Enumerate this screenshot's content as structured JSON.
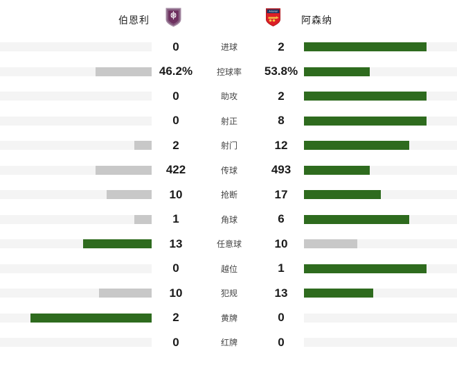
{
  "header": {
    "home_team": "伯恩利",
    "away_team": "阿森纳",
    "home_badge": "burnley-crest",
    "away_badge": "arsenal-crest",
    "away_badge_text": "Arsenal"
  },
  "colors": {
    "win_bar": "#2e6b1e",
    "lose_bar": "#c8c8c8",
    "bar_track": "#f4f4f4",
    "value_text": "#1a1a1a",
    "label_text": "#444444",
    "burnley_purple": "#6e3160",
    "arsenal_red": "#dc1f26",
    "arsenal_navy": "#1b3260",
    "arsenal_gold": "#f3c148"
  },
  "chart_data": {
    "type": "bar",
    "orientation": "horizontal-paired",
    "title": "",
    "categories": [
      "进球",
      "控球率",
      "助攻",
      "射正",
      "射门",
      "传球",
      "抢断",
      "角球",
      "任意球",
      "越位",
      "犯规",
      "黄牌",
      "红牌"
    ],
    "series": [
      {
        "name": "伯恩利",
        "values": [
          0,
          46.2,
          0,
          0,
          2,
          422,
          10,
          1,
          13,
          0,
          10,
          2,
          0
        ],
        "display": [
          "0",
          "46.2%",
          "0",
          "0",
          "2",
          "422",
          "10",
          "1",
          "13",
          "0",
          "10",
          "2",
          "0"
        ]
      },
      {
        "name": "阿森纳",
        "values": [
          2,
          53.8,
          2,
          8,
          12,
          493,
          17,
          6,
          10,
          1,
          13,
          0,
          0
        ],
        "display": [
          "2",
          "53.8%",
          "2",
          "8",
          "12",
          "493",
          "17",
          "6",
          "10",
          "1",
          "13",
          "0",
          "0"
        ]
      }
    ],
    "bar_scale_max_fraction": 0.8,
    "legend_position": "top",
    "grid": false
  }
}
